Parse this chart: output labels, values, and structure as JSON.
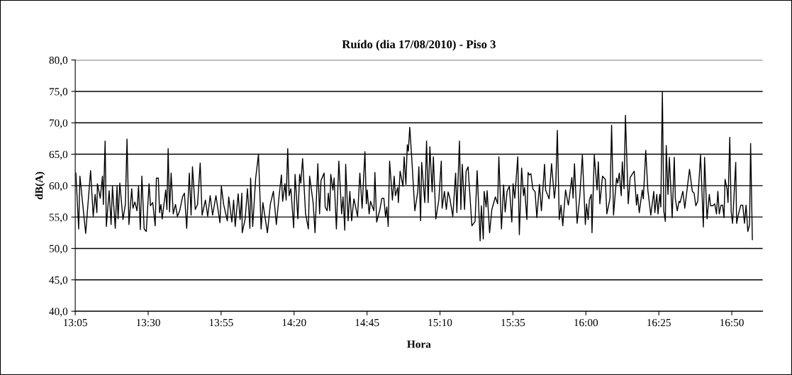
{
  "chart_data": {
    "type": "line",
    "title": "Ruído (dia 17/08/2010) - Piso 3",
    "xlabel": "Hora",
    "ylabel": "dB(A)",
    "xlim": [
      13.08333,
      17.01
    ],
    "ylim": [
      40,
      80
    ],
    "xticks": [
      {
        "value": 13.08333,
        "label": "13:05"
      },
      {
        "value": 13.5,
        "label": "13:30"
      },
      {
        "value": 13.91667,
        "label": "13:55"
      },
      {
        "value": 14.33333,
        "label": "14:20"
      },
      {
        "value": 14.75,
        "label": "14:45"
      },
      {
        "value": 15.16667,
        "label": "15:10"
      },
      {
        "value": 15.58333,
        "label": "15:35"
      },
      {
        "value": 16.0,
        "label": "16:00"
      },
      {
        "value": 16.41667,
        "label": "16:25"
      },
      {
        "value": 16.83333,
        "label": "16:50"
      }
    ],
    "yticks": [
      {
        "value": 40,
        "label": "40,0"
      },
      {
        "value": 45,
        "label": "45,0"
      },
      {
        "value": 50,
        "label": "50,0"
      },
      {
        "value": 55,
        "label": "55,0"
      },
      {
        "value": 60,
        "label": "60,0"
      },
      {
        "value": 65,
        "label": "65,0"
      },
      {
        "value": 70,
        "label": "70,0"
      },
      {
        "value": 75,
        "label": "75,0"
      },
      {
        "value": 80,
        "label": "80,0"
      }
    ],
    "grid": "y",
    "legend": false,
    "marker": "none",
    "line_style": "solid",
    "series": [
      {
        "color": "#000000",
        "x": [
          13.087,
          13.103,
          13.11,
          13.143,
          13.171,
          13.186,
          13.197,
          13.207,
          13.21,
          13.226,
          13.239,
          13.244,
          13.254,
          13.261,
          13.277,
          13.288,
          13.296,
          13.312,
          13.322,
          13.328,
          13.338,
          13.356,
          13.37,
          13.379,
          13.39,
          13.406,
          13.413,
          13.424,
          13.436,
          13.445,
          13.455,
          13.464,
          13.477,
          13.489,
          13.505,
          13.513,
          13.526,
          13.54,
          13.547,
          13.558,
          13.565,
          13.573,
          13.58,
          13.6,
          13.607,
          13.614,
          13.622,
          13.631,
          13.643,
          13.656,
          13.667,
          13.68,
          13.696,
          13.707,
          13.72,
          13.735,
          13.745,
          13.753,
          13.769,
          13.782,
          13.797,
          13.808,
          13.827,
          13.84,
          13.854,
          13.868,
          13.887,
          13.91,
          13.918,
          13.931,
          13.952,
          13.96,
          13.978,
          13.988,
          13.997,
          14.014,
          14.025,
          14.035,
          14.037,
          14.054,
          14.067,
          14.081,
          14.085,
          14.097,
          14.114,
          14.13,
          14.145,
          14.155,
          14.181,
          14.198,
          14.215,
          14.232,
          14.248,
          14.261,
          14.268,
          14.281,
          14.288,
          14.297,
          14.305,
          14.315,
          14.331,
          14.339,
          14.355,
          14.365,
          14.372,
          14.382,
          14.399,
          14.415,
          14.422,
          14.442,
          14.453,
          14.469,
          14.479,
          14.487,
          14.505,
          14.511,
          14.522,
          14.529,
          14.537,
          14.543,
          14.555,
          14.562,
          14.575,
          14.589,
          14.605,
          14.613,
          14.623,
          14.628,
          14.642,
          14.652,
          14.662,
          14.675,
          14.696,
          14.709,
          14.722,
          14.738,
          14.746,
          14.751,
          14.762,
          14.77,
          14.789,
          14.795,
          14.805,
          14.822,
          14.835,
          14.846,
          14.856,
          14.863,
          14.871,
          14.879,
          14.895,
          14.905,
          14.912,
          14.925,
          14.929,
          14.939,
          14.955,
          14.962,
          14.972,
          14.98,
          14.986,
          14.994,
          15.005,
          15.023,
          15.04,
          15.046,
          15.056,
          15.062,
          15.08,
          15.09,
          15.099,
          15.109,
          15.122,
          15.129,
          15.143,
          15.16,
          15.174,
          15.179,
          15.192,
          15.203,
          15.213,
          15.223,
          15.24,
          15.256,
          15.263,
          15.278,
          15.286,
          15.294,
          15.307,
          15.316,
          15.327,
          15.349,
          15.367,
          15.379,
          15.396,
          15.403,
          15.414,
          15.419,
          15.43,
          15.436,
          15.45,
          15.463,
          15.483,
          15.496,
          15.503,
          15.518,
          15.53,
          15.539,
          15.55,
          15.563,
          15.577,
          15.584,
          15.594,
          15.611,
          15.62,
          15.633,
          15.644,
          15.65,
          15.663,
          15.67,
          15.677,
          15.686,
          15.697,
          15.71,
          15.72,
          15.735,
          15.746,
          15.764,
          15.77,
          15.79,
          15.804,
          15.82,
          15.828,
          15.837,
          15.848,
          15.858,
          15.868,
          15.884,
          15.9,
          15.92,
          15.927,
          15.935,
          15.95,
          15.965,
          15.98,
          15.997,
          16.004,
          16.013,
          16.02,
          16.031,
          16.035,
          16.048,
          16.064,
          16.071,
          16.08,
          16.095,
          16.111,
          16.12,
          16.138,
          16.147,
          16.158,
          16.175,
          16.182,
          16.191,
          16.202,
          16.208,
          16.218,
          16.226,
          16.242,
          16.253,
          16.276,
          16.289,
          16.295,
          16.305,
          16.322,
          16.328,
          16.342,
          16.354,
          16.371,
          16.388,
          16.394,
          16.405,
          16.412,
          16.422,
          16.428,
          16.437,
          16.445,
          16.454,
          16.459,
          16.469,
          16.477,
          16.493,
          16.505,
          16.511,
          16.522,
          16.532,
          16.538,
          16.554,
          16.565,
          16.592,
          16.608,
          16.618,
          16.628,
          16.639,
          16.655,
          16.671,
          16.678,
          16.692,
          16.705,
          16.712,
          16.725,
          16.736,
          16.746,
          16.754,
          16.762,
          16.772,
          16.781,
          16.789,
          16.795,
          16.806,
          16.812,
          16.822,
          16.83,
          16.838,
          16.856,
          16.861,
          16.872,
          16.885,
          16.896,
          16.906,
          16.915,
          16.925,
          16.935,
          16.941,
          16.951
        ],
        "values": [
          62.0,
          53.1,
          61.5,
          52.4,
          62.4,
          55.1,
          58.6,
          55.7,
          60.3,
          58.0,
          61.5,
          57.0,
          67.1,
          53.5,
          59.2,
          53.8,
          59.9,
          53.2,
          59.9,
          54.7,
          60.4,
          54.6,
          57.1,
          67.4,
          53.8,
          59.5,
          56.4,
          57.4,
          56.0,
          59.9,
          53.0,
          61.5,
          53.1,
          52.7,
          60.3,
          56.8,
          57.3,
          53.6,
          61.2,
          61.2,
          55.7,
          57.0,
          54.7,
          59.3,
          56.2,
          65.9,
          55.8,
          62.0,
          55.5,
          57.0,
          55.1,
          56.0,
          58.2,
          58.8,
          53.2,
          62.0,
          55.3,
          63.0,
          56.2,
          57.0,
          63.6,
          55.3,
          57.7,
          55.1,
          58.4,
          55.3,
          58.4,
          54.1,
          59.9,
          57.0,
          54.4,
          58.2,
          54.2,
          57.7,
          53.5,
          58.7,
          54.6,
          58.8,
          52.5,
          54.7,
          59.5,
          53.2,
          61.2,
          53.5,
          61.2,
          65.0,
          53.1,
          57.3,
          52.5,
          57.1,
          59.1,
          53.8,
          58.4,
          61.7,
          57.5,
          60.3,
          57.7,
          65.9,
          58.4,
          59.5,
          53.3,
          61.8,
          54.7,
          61.8,
          60.4,
          64.3,
          55.5,
          53.1,
          61.5,
          57.3,
          52.5,
          63.5,
          55.5,
          60.8,
          62.0,
          56.6,
          56.0,
          58.8,
          56.0,
          61.8,
          59.3,
          61.2,
          53.1,
          63.9,
          55.5,
          58.2,
          52.9,
          63.4,
          54.4,
          59.1,
          54.4,
          57.9,
          55.1,
          62.0,
          56.4,
          65.4,
          57.1,
          59.3,
          55.5,
          57.5,
          56.0,
          62.1,
          54.2,
          56.0,
          58.0,
          58.0,
          55.0,
          56.6,
          53.5,
          63.9,
          57.7,
          61.5,
          58.4,
          59.7,
          57.3,
          62.3,
          59.9,
          64.6,
          60.2,
          66.5,
          65.5,
          69.3,
          64.6,
          56.0,
          59.1,
          63.0,
          54.4,
          63.7,
          57.3,
          67.1,
          57.3,
          66.2,
          59.0,
          64.6,
          54.7,
          57.7,
          63.9,
          56.4,
          59.1,
          56.2,
          59.0,
          58.0,
          55.1,
          62.0,
          55.7,
          67.1,
          56.2,
          63.4,
          56.2,
          62.3,
          63.0,
          53.6,
          54.3,
          62.4,
          51.2,
          56.8,
          51.5,
          59.1,
          56.6,
          59.2,
          52.5,
          56.2,
          58.2,
          57.1,
          64.6,
          53.1,
          60.1,
          55.8,
          59.1,
          59.9,
          54.2,
          60.3,
          58.0,
          64.6,
          52.2,
          62.8,
          58.4,
          59.7,
          54.6,
          62.1,
          61.7,
          61.9,
          59.5,
          59.0,
          54.9,
          60.2,
          56.0,
          63.4,
          59.3,
          57.9,
          63.5,
          58.0,
          60.1,
          68.8,
          54.6,
          56.9,
          53.6,
          59.3,
          56.9,
          61.3,
          58.0,
          63.5,
          54.0,
          58.2,
          64.9,
          53.8,
          57.1,
          54.6,
          57.7,
          58.6,
          52.5,
          64.9,
          59.3,
          63.8,
          57.1,
          61.5,
          61.0,
          55.5,
          58.0,
          69.6,
          55.3,
          61.2,
          60.4,
          62.0,
          58.4,
          63.8,
          59.5,
          71.2,
          57.1,
          61.3,
          62.3,
          56.9,
          58.6,
          55.7,
          59.3,
          57.9,
          65.6,
          59.3,
          55.3,
          59.1,
          55.7,
          58.6,
          55.5,
          58.6,
          56.6,
          75.0,
          56.0,
          54.3,
          66.4,
          58.6,
          64.5,
          54.9,
          64.5,
          57.9,
          56.0,
          57.5,
          57.3,
          59.1,
          56.4,
          62.6,
          59.1,
          58.8,
          56.8,
          57.5,
          64.9,
          53.4,
          64.5,
          54.7,
          58.6,
          56.8,
          56.8,
          57.1,
          55.5,
          59.1,
          55.5,
          56.9,
          56.9,
          54.9,
          61.0,
          59.5,
          57.3,
          67.7,
          55.8,
          54.0,
          63.7,
          54.0,
          55.5,
          56.9,
          56.9,
          54.0,
          56.9,
          52.7,
          53.8,
          66.7,
          51.4
        ]
      }
    ]
  }
}
